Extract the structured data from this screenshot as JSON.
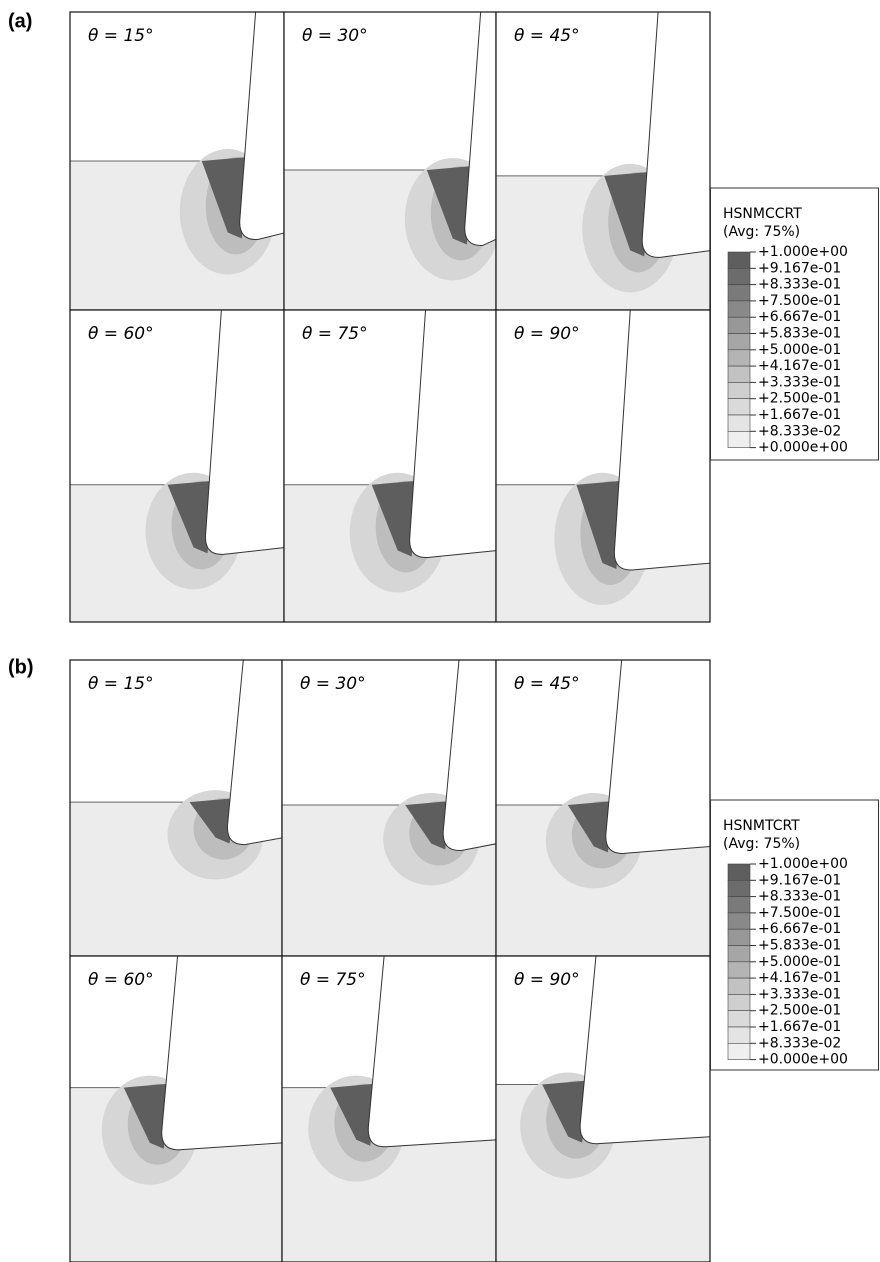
{
  "figures": [
    {
      "label": "(a)",
      "panels": [
        "θ = 15°",
        "θ = 30°",
        "θ = 45°",
        "θ = 60°",
        "θ = 75°",
        "θ = 90°"
      ],
      "legend": {
        "title": "HSNMCCRT",
        "subtitle": "(Avg: 75%)",
        "levels": [
          "+1.000e+00",
          "+9.167e-01",
          "+8.333e-01",
          "+7.500e-01",
          "+6.667e-01",
          "+5.833e-01",
          "+5.000e-01",
          "+4.167e-01",
          "+3.333e-01",
          "+2.500e-01",
          "+1.667e-01",
          "+8.333e-02",
          "+0.000e+00"
        ]
      }
    },
    {
      "label": "(b)",
      "panels": [
        "θ = 15°",
        "θ = 30°",
        "θ = 45°",
        "θ = 60°",
        "θ = 75°",
        "θ = 90°"
      ],
      "legend": {
        "title": "HSNMTCRT",
        "subtitle": "(Avg: 75%)",
        "levels": [
          "+1.000e+00",
          "+9.167e-01",
          "+8.333e-01",
          "+7.500e-01",
          "+6.667e-01",
          "+5.833e-01",
          "+5.000e-01",
          "+4.167e-01",
          "+3.333e-01",
          "+2.500e-01",
          "+1.667e-01",
          "+8.333e-02",
          "+0.000e+00"
        ]
      }
    }
  ]
}
